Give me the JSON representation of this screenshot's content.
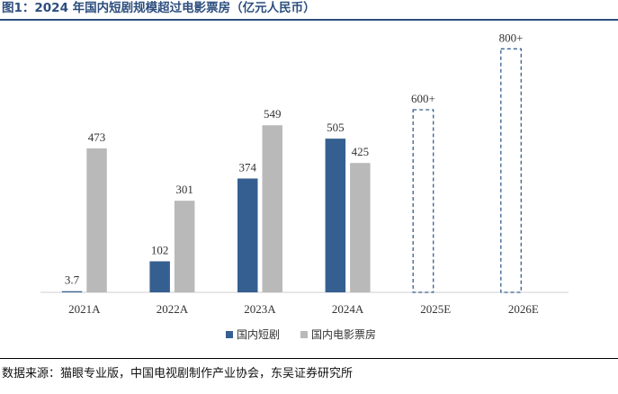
{
  "title": "图1：2024 年国内短剧规模超过电影票房（亿元人民币）",
  "source": "数据来源：猫眼专业版，中国电视剧制作产业协会，东吴证券研究所",
  "colors": {
    "short_drama": "#365f91",
    "box_office": "#b9b9b9",
    "estimate_outline": "#365f91",
    "title": "#2d4e7e"
  },
  "chart_data": {
    "type": "bar",
    "categories": [
      "2021A",
      "2022A",
      "2023A",
      "2024A",
      "2025E",
      "2026E"
    ],
    "series": [
      {
        "name": "国内短剧",
        "values": [
          3.7,
          102,
          374,
          505,
          600,
          800
        ],
        "labels": [
          "3.7",
          "102",
          "374",
          "505",
          "600+",
          "800+"
        ],
        "estimate": [
          false,
          false,
          false,
          false,
          true,
          true
        ]
      },
      {
        "name": "国内电影票房",
        "values": [
          473,
          301,
          549,
          425,
          null,
          null
        ],
        "labels": [
          "473",
          "301",
          "549",
          "425",
          "",
          ""
        ]
      }
    ],
    "ylim": [
      0,
      860
    ],
    "grid": false,
    "legend_position": "bottom-center",
    "title": "",
    "xlabel": "",
    "ylabel": ""
  }
}
